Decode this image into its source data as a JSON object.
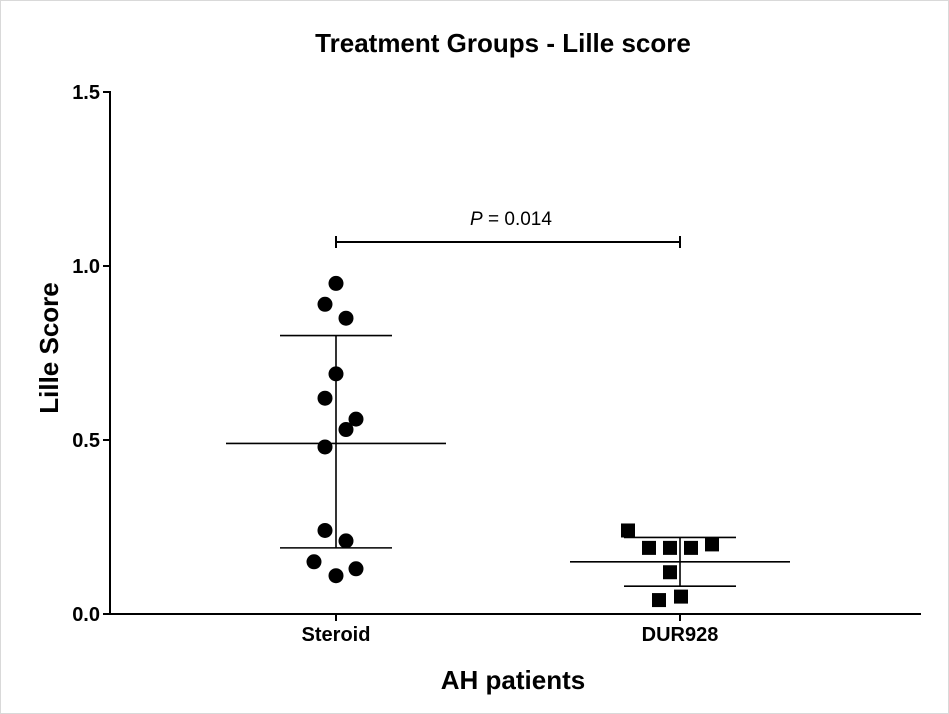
{
  "chart_data": {
    "type": "scatter",
    "title": "Treatment Groups - Lille score",
    "xlabel": "AH patients",
    "ylabel": "Lille Score",
    "ylim": [
      0,
      1.5
    ],
    "yticks": [
      0,
      0.5,
      1.0,
      1.5
    ],
    "ytick_labels": [
      "0.0",
      "0.5",
      "1.0",
      "1.5"
    ],
    "categories": [
      "Steroid",
      "DUR928"
    ],
    "groups": [
      {
        "marker": "circle",
        "values": [
          0.95,
          0.89,
          0.85,
          0.69,
          0.62,
          0.56,
          0.53,
          0.48,
          0.24,
          0.21,
          0.15,
          0.13,
          0.11
        ],
        "mean": 0.49,
        "error_bar": [
          0.19,
          0.8
        ]
      },
      {
        "marker": "square",
        "values": [
          0.24,
          0.19,
          0.19,
          0.19,
          0.2,
          0.12,
          0.04,
          0.05
        ],
        "mean": 0.15,
        "error_bar": [
          0.08,
          0.22
        ]
      }
    ],
    "annotation": {
      "symbol": "P",
      "text": " = 0.014",
      "between": [
        0,
        1
      ]
    },
    "grid": false,
    "legend": "none",
    "colors": {
      "marker": "#000000",
      "line": "#000000",
      "background": "#ffffff",
      "frame": "#d9d9d9"
    }
  }
}
